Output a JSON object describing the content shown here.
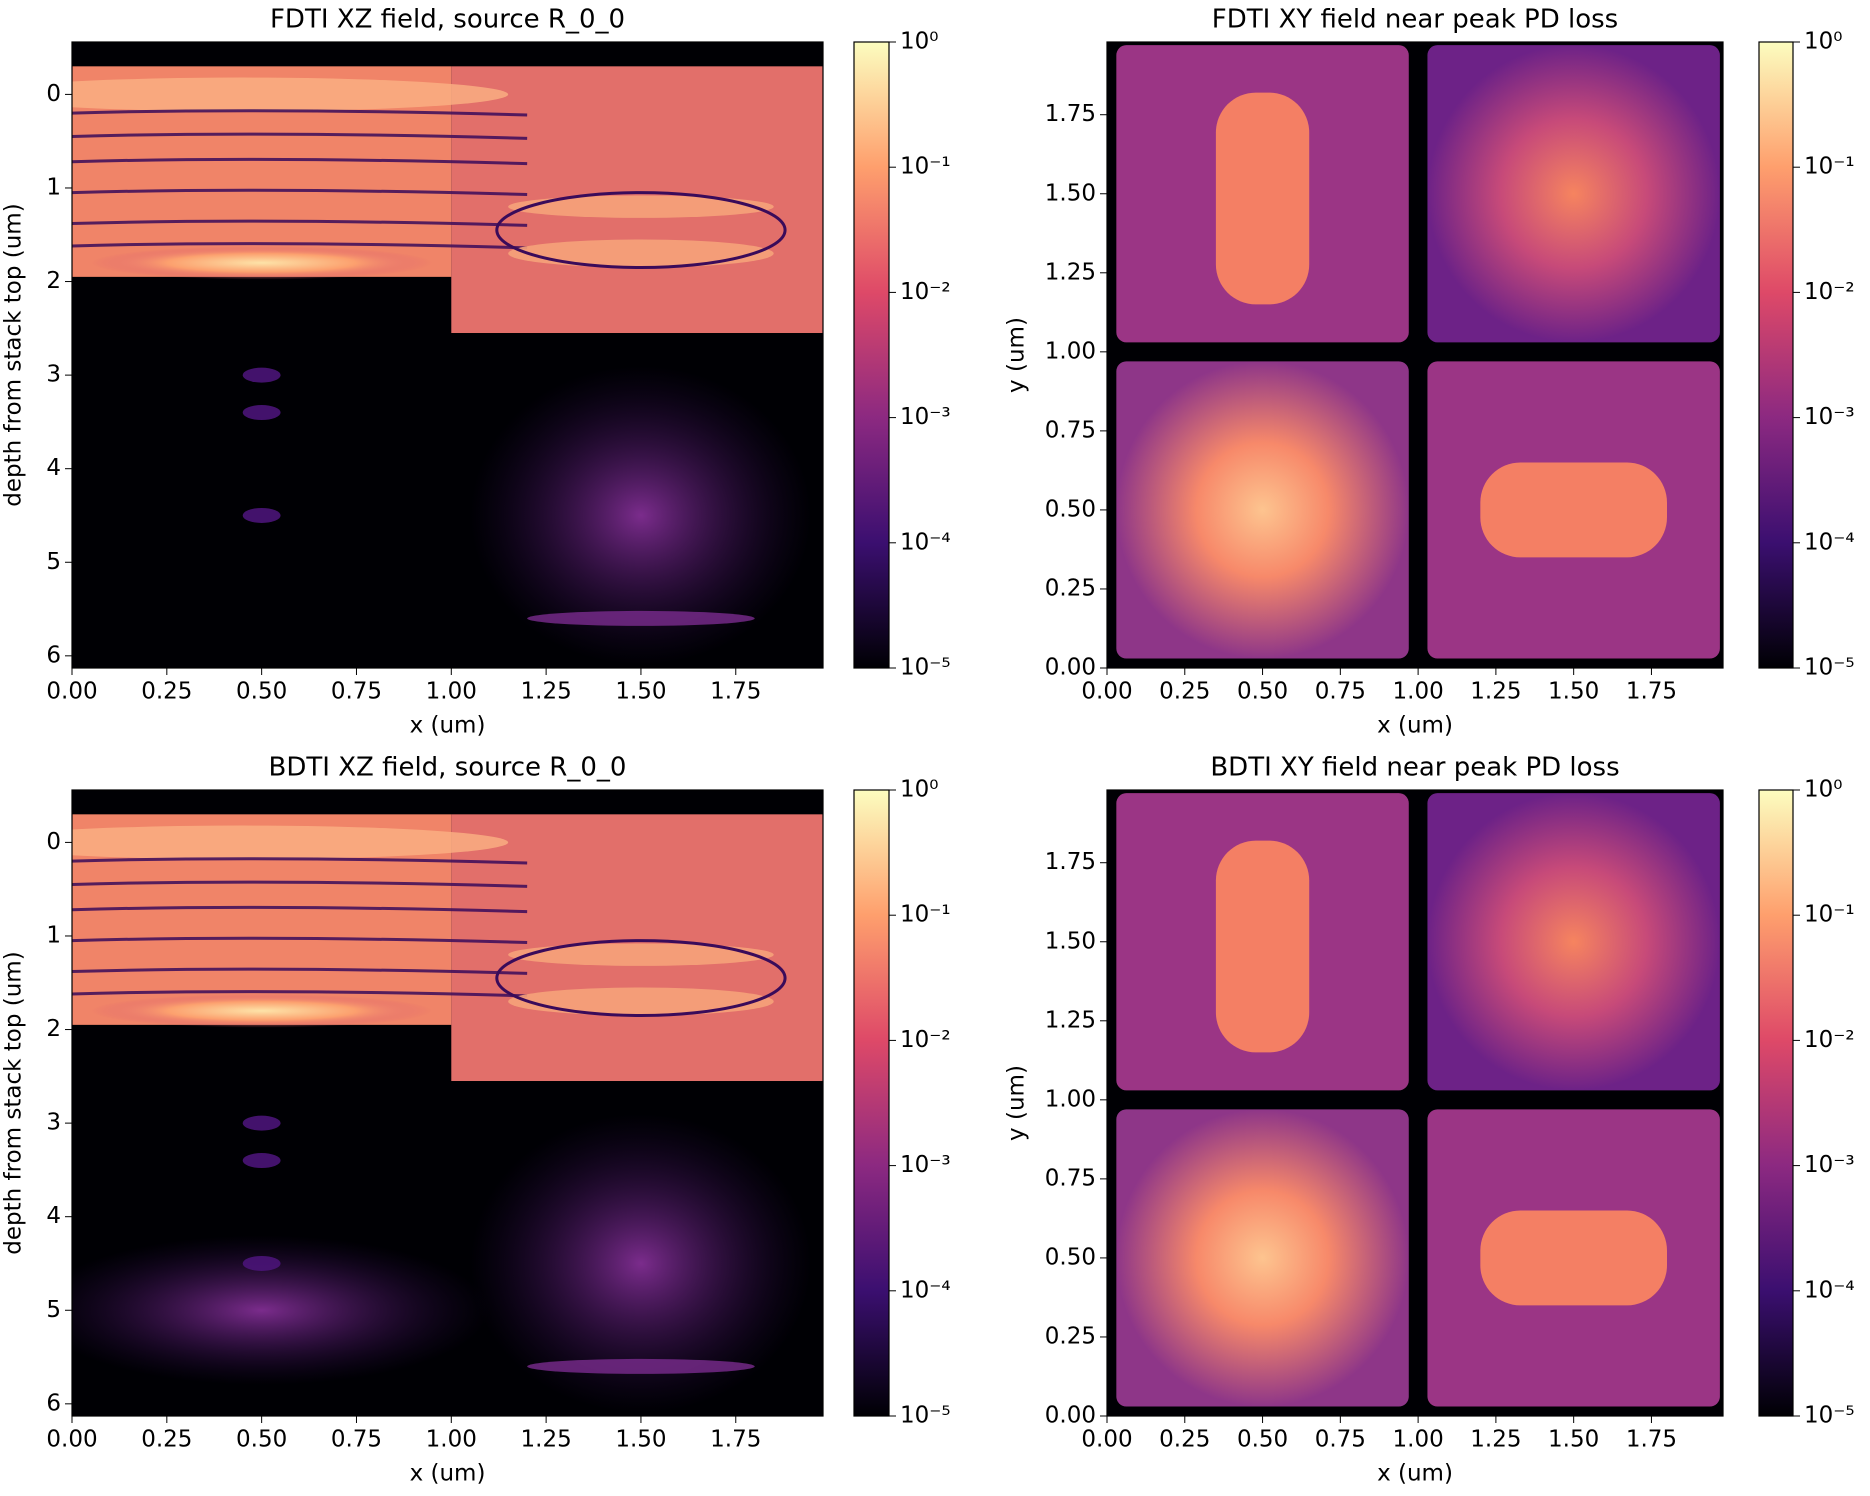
{
  "chart_data": [
    {
      "type": "heatmap",
      "title": "FDTI XZ field, source R_0_0",
      "xlabel": "x (um)",
      "ylabel": "depth from stack top (um)",
      "xlim": [
        0,
        1.98
      ],
      "ylim": [
        6.13,
        -0.56
      ],
      "xticks": [
        {
          "value": 0,
          "label": "0.00"
        },
        0.25,
        {
          "value": 0.5,
          "label": "0.50"
        },
        0.75,
        {
          "value": 1,
          "label": "1.00"
        },
        1.25,
        {
          "value": 1.5,
          "label": "1.50"
        },
        1.75
      ],
      "yticks": [
        0,
        1,
        2,
        3,
        4,
        5,
        6
      ],
      "view": "xz",
      "variant": "fdti",
      "colorbar": {
        "clim": [
          1e-05,
          1
        ],
        "scale": "log",
        "colormap": "magma",
        "ticks": [
          {
            "value": 1,
            "label": "10⁰"
          },
          {
            "value": 0.1,
            "label": "10⁻¹"
          },
          {
            "value": 0.01,
            "label": "10⁻²"
          },
          {
            "value": 0.001,
            "label": "10⁻³"
          },
          {
            "value": 0.0001,
            "label": "10⁻⁴"
          },
          {
            "value": 1e-05,
            "label": "10⁻⁵"
          }
        ]
      }
    },
    {
      "type": "heatmap",
      "title": "FDTI XY field near peak PD loss",
      "xlabel": "x (um)",
      "ylabel": "y (um)",
      "xlim": [
        0,
        1.98
      ],
      "ylim": [
        0,
        1.98
      ],
      "xticks": [
        {
          "value": 0,
          "label": "0.00"
        },
        0.25,
        {
          "value": 0.5,
          "label": "0.50"
        },
        0.75,
        {
          "value": 1,
          "label": "1.00"
        },
        1.25,
        {
          "value": 1.5,
          "label": "1.50"
        },
        1.75
      ],
      "yticks": [
        {
          "value": 0,
          "label": "0.00"
        },
        0.25,
        {
          "value": 0.5,
          "label": "0.50"
        },
        0.75,
        {
          "value": 1,
          "label": "1.00"
        },
        1.25,
        {
          "value": 1.5,
          "label": "1.50"
        },
        1.75
      ],
      "view": "xy",
      "variant": "fdti",
      "colorbar": {
        "clim": [
          1e-05,
          1
        ],
        "scale": "log",
        "colormap": "magma",
        "ticks": [
          {
            "value": 1,
            "label": "10⁰"
          },
          {
            "value": 0.1,
            "label": "10⁻¹"
          },
          {
            "value": 0.01,
            "label": "10⁻²"
          },
          {
            "value": 0.001,
            "label": "10⁻³"
          },
          {
            "value": 0.0001,
            "label": "10⁻⁴"
          },
          {
            "value": 1e-05,
            "label": "10⁻⁵"
          }
        ]
      }
    },
    {
      "type": "heatmap",
      "title": "BDTI XZ field, source R_0_0",
      "xlabel": "x (um)",
      "ylabel": "depth from stack top (um)",
      "xlim": [
        0,
        1.98
      ],
      "ylim": [
        6.13,
        -0.56
      ],
      "xticks": [
        {
          "value": 0,
          "label": "0.00"
        },
        0.25,
        {
          "value": 0.5,
          "label": "0.50"
        },
        0.75,
        {
          "value": 1,
          "label": "1.00"
        },
        1.25,
        {
          "value": 1.5,
          "label": "1.50"
        },
        1.75
      ],
      "yticks": [
        0,
        1,
        2,
        3,
        4,
        5,
        6
      ],
      "view": "xz",
      "variant": "bdti",
      "colorbar": {
        "clim": [
          1e-05,
          1
        ],
        "scale": "log",
        "colormap": "magma",
        "ticks": [
          {
            "value": 1,
            "label": "10⁰"
          },
          {
            "value": 0.1,
            "label": "10⁻¹"
          },
          {
            "value": 0.01,
            "label": "10⁻²"
          },
          {
            "value": 0.001,
            "label": "10⁻³"
          },
          {
            "value": 0.0001,
            "label": "10⁻⁴"
          },
          {
            "value": 1e-05,
            "label": "10⁻⁵"
          }
        ]
      }
    },
    {
      "type": "heatmap",
      "title": "BDTI XY field near peak PD loss",
      "xlabel": "x (um)",
      "ylabel": "y (um)",
      "xlim": [
        0,
        1.98
      ],
      "ylim": [
        0,
        1.98
      ],
      "xticks": [
        {
          "value": 0,
          "label": "0.00"
        },
        0.25,
        {
          "value": 0.5,
          "label": "0.50"
        },
        0.75,
        {
          "value": 1,
          "label": "1.00"
        },
        1.25,
        {
          "value": 1.5,
          "label": "1.50"
        },
        1.75
      ],
      "yticks": [
        {
          "value": 0,
          "label": "0.00"
        },
        0.25,
        {
          "value": 0.5,
          "label": "0.50"
        },
        0.75,
        {
          "value": 1,
          "label": "1.00"
        },
        1.25,
        {
          "value": 1.5,
          "label": "1.50"
        },
        1.75
      ],
      "view": "xy",
      "variant": "bdti",
      "colorbar": {
        "clim": [
          1e-05,
          1
        ],
        "scale": "log",
        "colormap": "magma",
        "ticks": [
          {
            "value": 1,
            "label": "10⁰"
          },
          {
            "value": 0.1,
            "label": "10⁻¹"
          },
          {
            "value": 0.01,
            "label": "10⁻²"
          },
          {
            "value": 0.001,
            "label": "10⁻³"
          },
          {
            "value": 0.0001,
            "label": "10⁻⁴"
          },
          {
            "value": 1e-05,
            "label": "10⁻⁵"
          }
        ]
      }
    }
  ]
}
